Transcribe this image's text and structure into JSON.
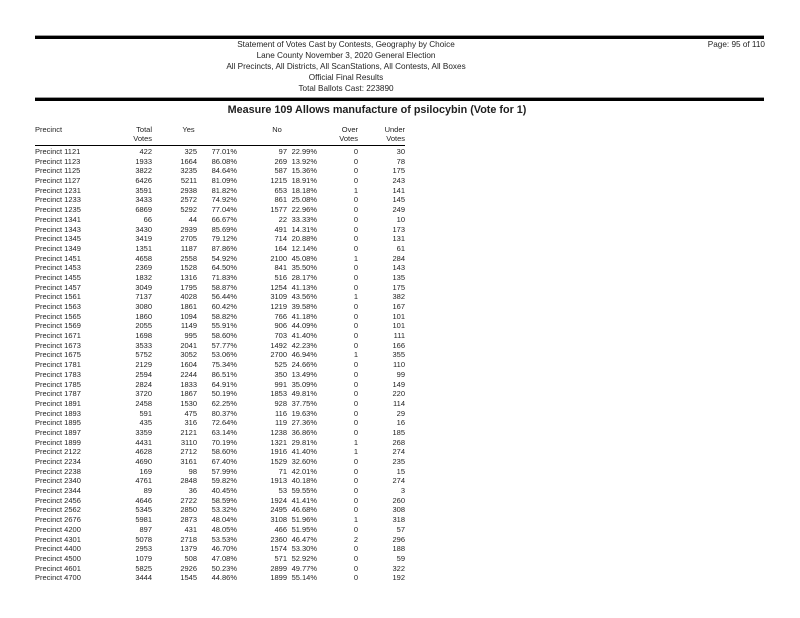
{
  "header": {
    "lines": [
      "Statement of Votes Cast by Contests, Geography by Choice",
      "Lane County November 3, 2020 General Election",
      "All Precincts, All Districts, All ScanStations, All Contests, All Boxes",
      "Official Final Results",
      "Total Ballots Cast: 223890"
    ],
    "page_info": "Page: 95 of 110"
  },
  "contest": {
    "title": "Measure 109 Allows manufacture of psilocybin (Vote for 1)"
  },
  "table": {
    "header": {
      "precinct": "Precinct",
      "total": [
        "Total",
        "Votes"
      ],
      "yes": "Yes",
      "no": "No",
      "over": [
        "Over",
        "Votes"
      ],
      "under": [
        "Under",
        "Votes"
      ]
    },
    "column_fields": [
      "precinct-name",
      "total-votes",
      "yes-votes",
      "yes-percent",
      "no-votes",
      "no-percent",
      "over-votes",
      "under-votes"
    ],
    "rows": [
      [
        "Precinct 1121",
        "422",
        "325",
        "77.01%",
        "97",
        "22.99%",
        "0",
        "30"
      ],
      [
        "Precinct 1123",
        "1933",
        "1664",
        "86.08%",
        "269",
        "13.92%",
        "0",
        "78"
      ],
      [
        "Precinct 1125",
        "3822",
        "3235",
        "84.64%",
        "587",
        "15.36%",
        "0",
        "175"
      ],
      [
        "Precinct 1127",
        "6426",
        "5211",
        "81.09%",
        "1215",
        "18.91%",
        "0",
        "243"
      ],
      [
        "Precinct 1231",
        "3591",
        "2938",
        "81.82%",
        "653",
        "18.18%",
        "1",
        "141"
      ],
      [
        "Precinct 1233",
        "3433",
        "2572",
        "74.92%",
        "861",
        "25.08%",
        "0",
        "145"
      ],
      [
        "Precinct 1235",
        "6869",
        "5292",
        "77.04%",
        "1577",
        "22.96%",
        "0",
        "249"
      ],
      [
        "Precinct 1341",
        "66",
        "44",
        "66.67%",
        "22",
        "33.33%",
        "0",
        "10"
      ],
      [
        "Precinct 1343",
        "3430",
        "2939",
        "85.69%",
        "491",
        "14.31%",
        "0",
        "173"
      ],
      [
        "Precinct 1345",
        "3419",
        "2705",
        "79.12%",
        "714",
        "20.88%",
        "0",
        "131"
      ],
      [
        "Precinct 1349",
        "1351",
        "1187",
        "87.86%",
        "164",
        "12.14%",
        "0",
        "61"
      ],
      [
        "Precinct 1451",
        "4658",
        "2558",
        "54.92%",
        "2100",
        "45.08%",
        "1",
        "284"
      ],
      [
        "Precinct 1453",
        "2369",
        "1528",
        "64.50%",
        "841",
        "35.50%",
        "0",
        "143"
      ],
      [
        "Precinct 1455",
        "1832",
        "1316",
        "71.83%",
        "516",
        "28.17%",
        "0",
        "135"
      ],
      [
        "Precinct 1457",
        "3049",
        "1795",
        "58.87%",
        "1254",
        "41.13%",
        "0",
        "175"
      ],
      [
        "Precinct 1561",
        "7137",
        "4028",
        "56.44%",
        "3109",
        "43.56%",
        "1",
        "382"
      ],
      [
        "Precinct 1563",
        "3080",
        "1861",
        "60.42%",
        "1219",
        "39.58%",
        "0",
        "167"
      ],
      [
        "Precinct 1565",
        "1860",
        "1094",
        "58.82%",
        "766",
        "41.18%",
        "0",
        "101"
      ],
      [
        "Precinct 1569",
        "2055",
        "1149",
        "55.91%",
        "906",
        "44.09%",
        "0",
        "101"
      ],
      [
        "Precinct 1671",
        "1698",
        "995",
        "58.60%",
        "703",
        "41.40%",
        "0",
        "111"
      ],
      [
        "Precinct 1673",
        "3533",
        "2041",
        "57.77%",
        "1492",
        "42.23%",
        "0",
        "166"
      ],
      [
        "Precinct 1675",
        "5752",
        "3052",
        "53.06%",
        "2700",
        "46.94%",
        "1",
        "355"
      ],
      [
        "Precinct 1781",
        "2129",
        "1604",
        "75.34%",
        "525",
        "24.66%",
        "0",
        "110"
      ],
      [
        "Precinct 1783",
        "2594",
        "2244",
        "86.51%",
        "350",
        "13.49%",
        "0",
        "99"
      ],
      [
        "Precinct 1785",
        "2824",
        "1833",
        "64.91%",
        "991",
        "35.09%",
        "0",
        "149"
      ],
      [
        "Precinct 1787",
        "3720",
        "1867",
        "50.19%",
        "1853",
        "49.81%",
        "0",
        "220"
      ],
      [
        "Precinct 1891",
        "2458",
        "1530",
        "62.25%",
        "928",
        "37.75%",
        "0",
        "114"
      ],
      [
        "Precinct 1893",
        "591",
        "475",
        "80.37%",
        "116",
        "19.63%",
        "0",
        "29"
      ],
      [
        "Precinct 1895",
        "435",
        "316",
        "72.64%",
        "119",
        "27.36%",
        "0",
        "16"
      ],
      [
        "Precinct 1897",
        "3359",
        "2121",
        "63.14%",
        "1238",
        "36.86%",
        "0",
        "185"
      ],
      [
        "Precinct 1899",
        "4431",
        "3110",
        "70.19%",
        "1321",
        "29.81%",
        "1",
        "268"
      ],
      [
        "Precinct 2122",
        "4628",
        "2712",
        "58.60%",
        "1916",
        "41.40%",
        "1",
        "274"
      ],
      [
        "Precinct 2234",
        "4690",
        "3161",
        "67.40%",
        "1529",
        "32.60%",
        "0",
        "235"
      ],
      [
        "Precinct 2238",
        "169",
        "98",
        "57.99%",
        "71",
        "42.01%",
        "0",
        "15"
      ],
      [
        "Precinct 2340",
        "4761",
        "2848",
        "59.82%",
        "1913",
        "40.18%",
        "0",
        "274"
      ],
      [
        "Precinct 2344",
        "89",
        "36",
        "40.45%",
        "53",
        "59.55%",
        "0",
        "3"
      ],
      [
        "Precinct 2456",
        "4646",
        "2722",
        "58.59%",
        "1924",
        "41.41%",
        "0",
        "260"
      ],
      [
        "Precinct 2562",
        "5345",
        "2850",
        "53.32%",
        "2495",
        "46.68%",
        "0",
        "308"
      ],
      [
        "Precinct 2676",
        "5981",
        "2873",
        "48.04%",
        "3108",
        "51.96%",
        "1",
        "318"
      ],
      [
        "Precinct 4200",
        "897",
        "431",
        "48.05%",
        "466",
        "51.95%",
        "0",
        "57"
      ],
      [
        "Precinct 4301",
        "5078",
        "2718",
        "53.53%",
        "2360",
        "46.47%",
        "2",
        "296"
      ],
      [
        "Precinct 4400",
        "2953",
        "1379",
        "46.70%",
        "1574",
        "53.30%",
        "0",
        "188"
      ],
      [
        "Precinct 4500",
        "1079",
        "508",
        "47.08%",
        "571",
        "52.92%",
        "0",
        "59"
      ],
      [
        "Precinct 4601",
        "5825",
        "2926",
        "50.23%",
        "2899",
        "49.77%",
        "0",
        "322"
      ],
      [
        "Precinct 4700",
        "3444",
        "1545",
        "44.86%",
        "1899",
        "55.14%",
        "0",
        "192"
      ]
    ]
  }
}
